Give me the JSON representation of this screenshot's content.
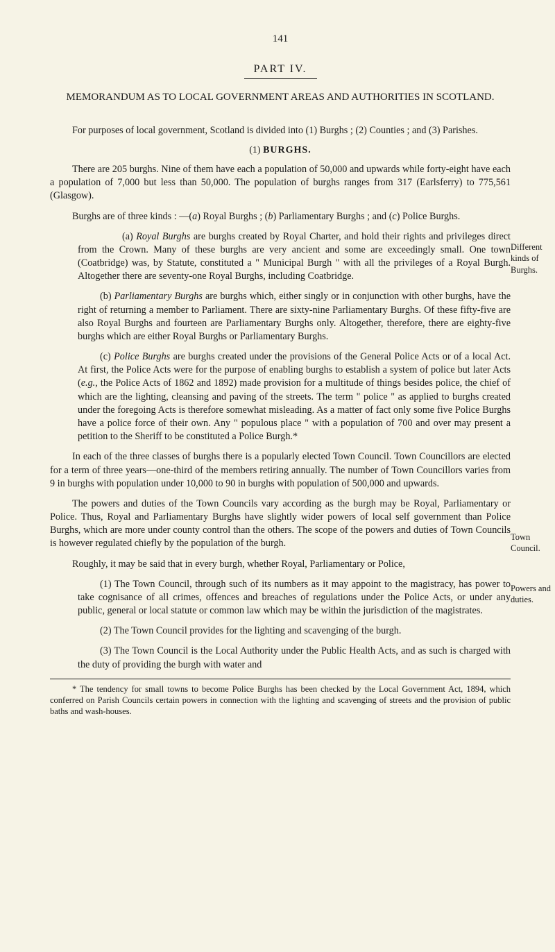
{
  "pageNumber": "141",
  "partHeading": "PART IV.",
  "memoTitle": "MEMORANDUM AS TO LOCAL GOVERNMENT AREAS AND AUTHORITIES IN SCOTLAND.",
  "intro": "For purposes of local government, Scotland is divided into (1) Burghs ; (2) Counties ; and (3) Parishes.",
  "burghsHeading": {
    "num": "(1)",
    "word": "BURGHS."
  },
  "p2": "There are 205 burghs. Nine of them have each a population of 50,000 and upwards while forty-eight have each a population of 7,000 but less than 50,000. The population of burghs ranges from 317 (Earlsferry) to 775,561 (Glasgow).",
  "p3_pre": "Burghs are of three kinds : —(",
  "p3_a": "a",
  "p3_mid1": ") Royal Burghs ; (",
  "p3_b": "b",
  "p3_mid2": ") Parliamentary Burghs ; and (",
  "p3_c": "c",
  "p3_end": ") Police Burghs.",
  "sub_a_pre": "(a) ",
  "sub_a_ital": "Royal Burghs",
  "sub_a_body": " are burghs created by Royal Charter, and hold their rights and privileges direct from the Crown. Many of these burghs are very ancient and some are exceedingly small. One town (Coatbridge) was, by Statute, constituted a \" Municipal Burgh \" with all the privileges of a Royal Burgh. Altogether there are seventy-one Royal Burghs, including Coatbridge.",
  "sub_b_pre": "(b) ",
  "sub_b_ital": "Parliamentary Burghs",
  "sub_b_body": " are burghs which, either singly or in conjunction with other burghs, have the right of returning a member to Parliament. There are sixty-nine Parliamentary Burghs. Of these fifty-five are also Royal Burghs and fourteen are Parliamentary Burghs only. Altogether, therefore, there are eighty-five burghs which are either Royal Burghs or Parliamentary Burghs.",
  "sub_c_pre": "(c) ",
  "sub_c_ital": "Police Burghs",
  "sub_c_body1": " are burghs created under the provisions of the General Police Acts or of a local Act. At first, the Police Acts were for the purpose of enabling burghs to establish a system of police but later Acts (",
  "sub_c_eg": "e.g.",
  "sub_c_body2": ", the Police Acts of 1862 and 1892) made provision for a multitude of things besides police, the chief of which are the lighting, cleansing and paving of the streets. The term \" police \" as applied to burghs created under the foregoing Acts is therefore somewhat misleading. As a matter of fact only some five Police Burghs have a police force of their own. Any \" populous place \" with a population of 700 and over may present a petition to the Sheriff to be constituted a Police Burgh.*",
  "p4": "In each of the three classes of burghs there is a popularly elected Town Council. Town Councillors are elected for a term of three years—one-third of the members retiring annually. The number of Town Councillors varies from 9 in burghs with population under 10,000 to 90 in burghs with population of 500,000 and upwards.",
  "p5": "The powers and duties of the Town Councils vary according as the burgh may be Royal, Parliamentary or Police. Thus, Royal and Parliamentary Burghs have slightly wider powers of local self government than Police Burghs, which are more under county control than the others. The scope of the powers and duties of Town Councils is however regulated chiefly by the population of the burgh.",
  "p6": "Roughly, it may be said that in every burgh, whether Royal, Parliamentary or Police,",
  "num1": "(1) The Town Council, through such of its numbers as it may appoint to the magistracy, has power to take cognisance of all crimes, offences and breaches of regulations under the Police Acts, or under any public, general or local statute or common law which may be within the jurisdiction of the magistrates.",
  "num2": "(2) The Town Council provides for the lighting and scavenging of the burgh.",
  "num3": "(3) The Town Council is the Local Authority under the Public Health Acts, and as such is charged with the duty of providing the burgh with water and",
  "marginNotes": {
    "n1": "Different kinds of Burghs.",
    "n2": "Town Council.",
    "n3": "Powers and duties."
  },
  "footnote": "* The tendency for small towns to become Police Burghs has been checked by the Local Government Act, 1894, which conferred on Parish Councils certain powers in connection with the lighting and scavenging of streets and the provision of public baths and wash-houses."
}
